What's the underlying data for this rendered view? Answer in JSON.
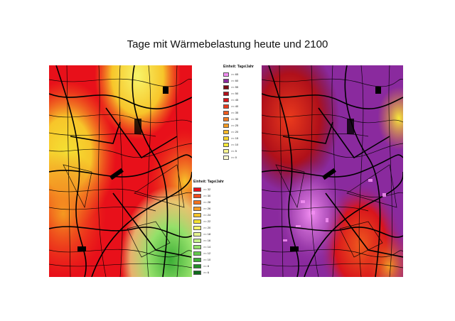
{
  "title": "Tage mit Wärmebelastung heute und 2100",
  "legend_today": {
    "title": "Einheit: Tage/Jahr",
    "items": [
      {
        "label": ">= 32",
        "color": "#e8101a"
      },
      {
        "label": ">= 30",
        "color": "#ef4a1c"
      },
      {
        "label": ">= 28",
        "color": "#f2721c"
      },
      {
        "label": ">= 26",
        "color": "#f59a20"
      },
      {
        "label": ">= 24",
        "color": "#f7c52a"
      },
      {
        "label": ">= 22",
        "color": "#f4e233"
      },
      {
        "label": ">= 20",
        "color": "#f7f56a"
      },
      {
        "label": ">= 18",
        "color": "#e6f590"
      },
      {
        "label": ">= 16",
        "color": "#c4f08a"
      },
      {
        "label": ">= 14",
        "color": "#94e06a"
      },
      {
        "label": ">= 12",
        "color": "#62c94c"
      },
      {
        "label": ">= 10",
        "color": "#3cae36"
      },
      {
        "label": ">= 8",
        "color": "#238f28"
      },
      {
        "label": ">= 6",
        "color": "#0f6b1c"
      }
    ]
  },
  "legend_2100": {
    "title": "Einheit: Tage/Jahr",
    "items": [
      {
        "label": ">= 65",
        "color": "#f28ef2"
      },
      {
        "label": ">= 60",
        "color": "#8a2a9e"
      },
      {
        "label": ">= 55",
        "color": "#7a0a14"
      },
      {
        "label": ">= 50",
        "color": "#b0101a"
      },
      {
        "label": ">= 45",
        "color": "#d8141c"
      },
      {
        "label": ">= 40",
        "color": "#ea3a1c"
      },
      {
        "label": ">= 35",
        "color": "#ef5a1e"
      },
      {
        "label": ">= 30",
        "color": "#f27a20"
      },
      {
        "label": ">= 25",
        "color": "#f59b22"
      },
      {
        "label": ">= 20",
        "color": "#f7b826"
      },
      {
        "label": ">= 15",
        "color": "#f7d32c"
      },
      {
        "label": ">= 10",
        "color": "#f7ea3a"
      },
      {
        "label": ">= 5",
        "color": "#f7f590"
      },
      {
        "label": ">= 0",
        "color": "#fbfbd0"
      }
    ]
  }
}
